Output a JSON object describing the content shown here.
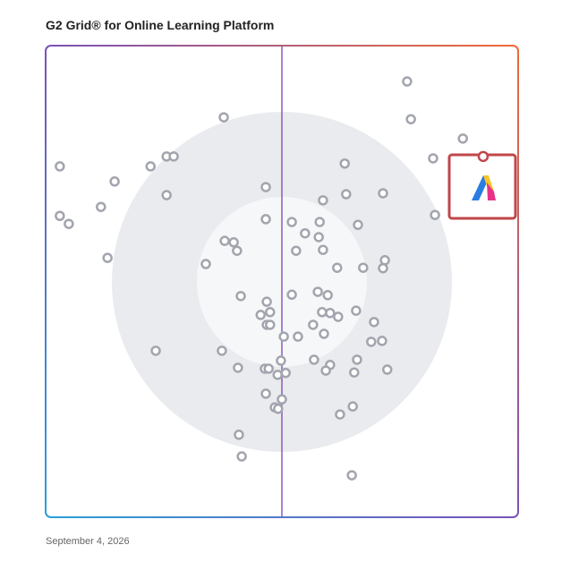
{
  "chart_data": {
    "type": "scatter",
    "title": "G2 Grid® for Online Learning Platform",
    "date": "September 4, 2026",
    "xlim": [
      0,
      100
    ],
    "ylim": [
      0,
      100
    ],
    "color": "#a2a5ae",
    "highlight_color": "#c0474a",
    "x": [
      76.5,
      77.3,
      88.3,
      82.0,
      37.7,
      3.0,
      14.6,
      22.2,
      25.6,
      27.1,
      63.3,
      25.6,
      46.6,
      58.7,
      63.6,
      71.4,
      82.4,
      11.7,
      3.0,
      4.9,
      46.6,
      52.1,
      58.0,
      66.1,
      54.9,
      57.8,
      37.9,
      39.8,
      40.5,
      53.0,
      58.7,
      13.1,
      33.9,
      61.7,
      67.2,
      71.8,
      71.4,
      41.3,
      46.8,
      52.1,
      57.6,
      59.7,
      47.5,
      45.5,
      46.8,
      47.5,
      58.5,
      60.2,
      61.9,
      65.7,
      69.5,
      56.6,
      58.9,
      50.4,
      53.4,
      23.3,
      37.3,
      68.9,
      71.2,
      40.7,
      46.4,
      47.2,
      49.8,
      49.1,
      50.8,
      56.8,
      60.2,
      59.3,
      65.9,
      65.3,
      72.3,
      46.6,
      50.0,
      48.5,
      49.2,
      65.0,
      62.3,
      40.9,
      41.5,
      64.8
    ],
    "y": [
      92.4,
      84.4,
      80.3,
      76.1,
      84.8,
      74.4,
      71.2,
      74.4,
      76.5,
      76.5,
      75.0,
      68.3,
      70.0,
      67.2,
      68.5,
      68.7,
      64.1,
      65.8,
      63.9,
      62.2,
      63.2,
      62.6,
      62.6,
      62.0,
      60.2,
      59.4,
      58.6,
      58.3,
      56.5,
      56.5,
      56.7,
      55.0,
      53.7,
      52.9,
      52.9,
      54.5,
      52.8,
      46.9,
      45.7,
      47.2,
      47.8,
      47.1,
      43.5,
      42.9,
      40.8,
      40.8,
      43.5,
      43.3,
      42.5,
      43.8,
      41.4,
      40.8,
      38.9,
      38.3,
      38.3,
      35.3,
      35.3,
      37.2,
      37.4,
      31.7,
      31.5,
      31.5,
      33.2,
      30.2,
      30.6,
      33.4,
      32.3,
      31.1,
      33.4,
      30.7,
      31.3,
      26.2,
      25.0,
      23.3,
      23.0,
      23.5,
      21.8,
      17.5,
      12.9,
      8.9
    ],
    "highlight": {
      "x": 92.6,
      "y": 76.5
    }
  }
}
